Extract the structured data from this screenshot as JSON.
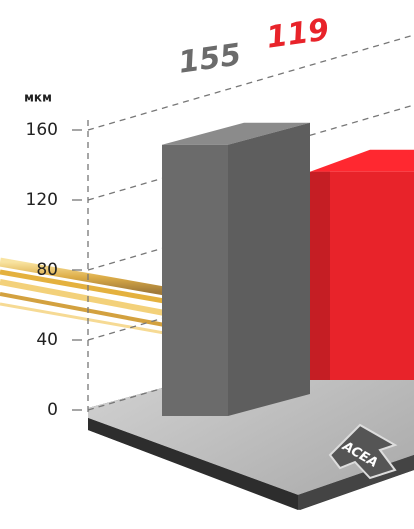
{
  "chart_data": {
    "type": "bar3d",
    "ylabel": "мкм",
    "values": [
      155,
      119
    ],
    "colors": [
      "#6b6b6b",
      "#e8232a"
    ],
    "ylim": [
      0,
      160
    ],
    "yticks": [
      0,
      40,
      80,
      120,
      160
    ],
    "grid": true,
    "annotation": "ACEA"
  }
}
